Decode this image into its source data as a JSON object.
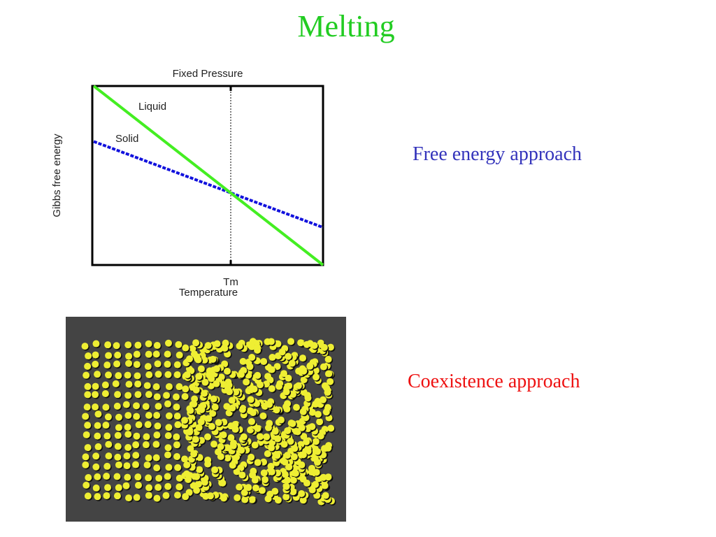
{
  "slide": {
    "title": "Melting",
    "title_color": "#22cc22"
  },
  "diagram": {
    "title": "Fixed Pressure",
    "ylabel": "Gibbs free energy",
    "xlabel": "Temperature",
    "xtick": "Tm",
    "curves": [
      {
        "name": "Liquid",
        "color": "#44ee22",
        "style": "solid",
        "start": 1.0,
        "end": 0.0
      },
      {
        "name": "Solid",
        "color": "#1111dd",
        "style": "dashed",
        "start": 0.69,
        "end": 0.21
      }
    ],
    "crossing_fraction_x": 0.6
  },
  "captions": {
    "free_energy": "Free energy approach",
    "coexistence": "Coexistence approach"
  },
  "simulation": {
    "background": "#444444",
    "particle_color": "#eeee33",
    "icon": "particle-simulation-image"
  }
}
